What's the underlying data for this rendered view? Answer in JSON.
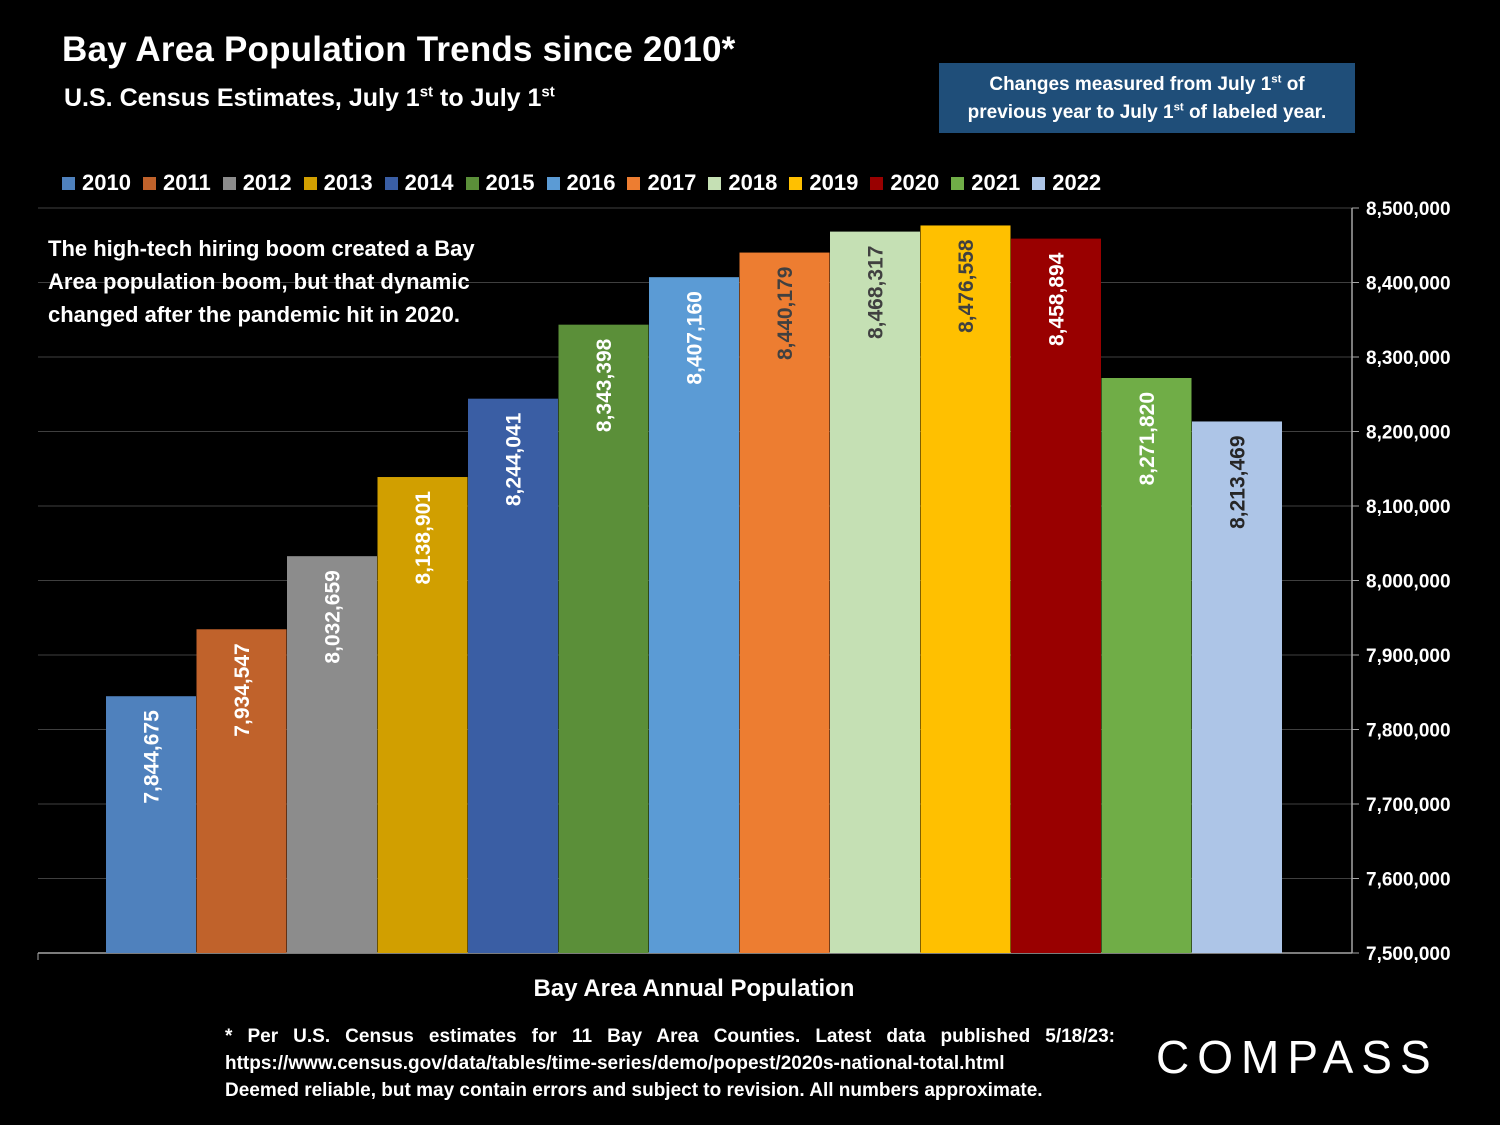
{
  "header": {
    "title": "Bay Area Population Trends since 2010*",
    "subtitle_main": "U.S. Census Estimates, July 1",
    "subtitle_sup1": "st",
    "subtitle_mid": " to July 1",
    "subtitle_sup2": "st"
  },
  "note": {
    "line1_a": "Changes measured from July 1",
    "line1_sup": "st",
    "line1_b": " of",
    "line2_a": "previous year to July 1",
    "line2_sup": "st",
    "line2_b": " of labeled year."
  },
  "annotation": "The high-tech hiring boom created a Bay Area population boom, but that dynamic changed after the pandemic hit in 2020.",
  "chart_data": {
    "type": "bar",
    "categories": [
      "2010",
      "2011",
      "2012",
      "2013",
      "2014",
      "2015",
      "2016",
      "2017",
      "2018",
      "2019",
      "2020",
      "2021",
      "2022"
    ],
    "values": [
      7844675,
      7934547,
      8032659,
      8138901,
      8244041,
      8343398,
      8407160,
      8440179,
      8468317,
      8476558,
      8458894,
      8271820,
      8213469
    ],
    "value_labels": [
      "7,844,675",
      "7,934,547",
      "8,032,659",
      "8,138,901",
      "8,244,041",
      "8,343,398",
      "8,407,160",
      "8,440,179",
      "8,468,317",
      "8,476,558",
      "8,458,894",
      "8,271,820",
      "8,213,469"
    ],
    "colors": [
      "#4f81bd",
      "#c0622b",
      "#8c8c8c",
      "#d19f00",
      "#3a5ea4",
      "#5b8f39",
      "#5b9bd5",
      "#ed7d31",
      "#c5e0b4",
      "#ffc000",
      "#990000",
      "#70ad47",
      "#adc5e7"
    ],
    "label_colors": [
      "#ffffff",
      "#ffffff",
      "#ffffff",
      "#ffffff",
      "#ffffff",
      "#ffffff",
      "#ffffff",
      "#404040",
      "#404040",
      "#404040",
      "#ffffff",
      "#ffffff",
      "#262626"
    ],
    "xlabel": "Bay Area Annual Population",
    "ylabel": "",
    "ylim": [
      7500000,
      8500000
    ],
    "y_ticks": [
      "7,500,000",
      "7,600,000",
      "7,700,000",
      "7,800,000",
      "7,900,000",
      "8,000,000",
      "8,100,000",
      "8,200,000",
      "8,300,000",
      "8,400,000",
      "8,500,000"
    ],
    "y_axis_side": "right",
    "grid": true,
    "legend": "top"
  },
  "footnote": {
    "line1": "* Per U.S. Census estimates for 11 Bay Area Counties. Latest data published 5/18/23:",
    "line2": "https://www.census.gov/data/tables/time-series/demo/popest/2020s-national-total.html",
    "line3": "Deemed reliable, but may contain errors and subject to revision.  All numbers  approximate."
  },
  "logo": "COMPASS"
}
